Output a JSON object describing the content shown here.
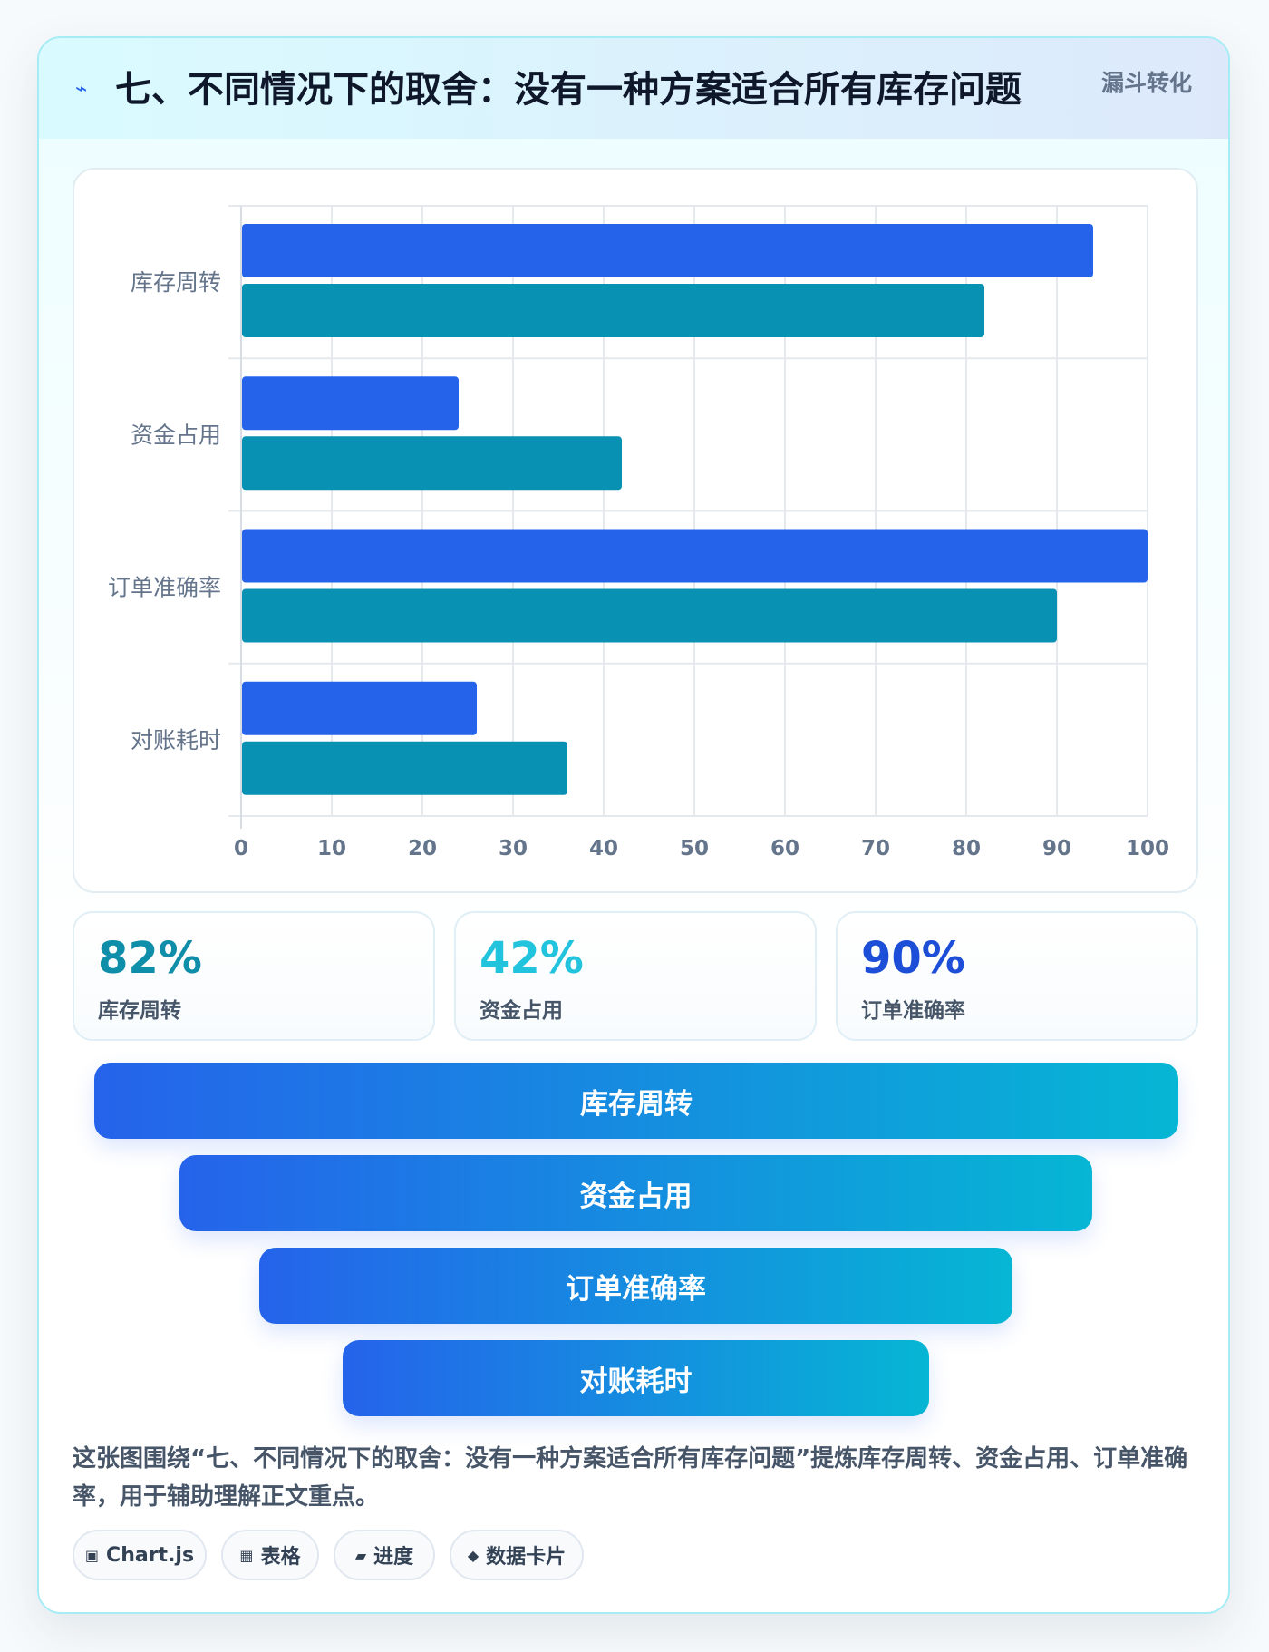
{
  "header": {
    "icon": "lightning-icon",
    "title": "七、不同情况下的取舍：没有一种方案适合所有库存问题",
    "tag": "漏斗转化"
  },
  "chart_data": {
    "type": "bar",
    "orientation": "horizontal",
    "categories": [
      "库存周转",
      "资金占用",
      "订单准确率",
      "对账耗时"
    ],
    "series": [
      {
        "values": [
          94,
          24,
          100,
          26
        ],
        "color": "#2563eb"
      },
      {
        "values": [
          82,
          42,
          90,
          36
        ],
        "color": "#0891b2"
      }
    ],
    "xlim": [
      0,
      100
    ],
    "xticks": [
      0,
      10,
      20,
      30,
      40,
      50,
      60,
      70,
      80,
      90,
      100
    ],
    "grid": true,
    "legend": "none"
  },
  "stats": [
    {
      "value": "82%",
      "label": "库存周转",
      "color": "#0e8ea8"
    },
    {
      "value": "42%",
      "label": "资金占用",
      "color": "#22c4dd"
    },
    {
      "value": "90%",
      "label": "订单准确率",
      "color": "#1d4ed8"
    }
  ],
  "funnel": [
    {
      "label": "库存周转"
    },
    {
      "label": "资金占用"
    },
    {
      "label": "订单准确率"
    },
    {
      "label": "对账耗时"
    }
  ],
  "description": "这张图围绕“七、不同情况下的取舍：没有一种方案适合所有库存问题”提炼库存周转、资金占用、订单准确率，用于辅助理解正文重点。",
  "chips": [
    {
      "icon": "▣",
      "label": "Chart.js"
    },
    {
      "icon": "▦",
      "label": "表格"
    },
    {
      "icon": "▰",
      "label": "进度"
    },
    {
      "icon": "◆",
      "label": "数据卡片"
    }
  ]
}
